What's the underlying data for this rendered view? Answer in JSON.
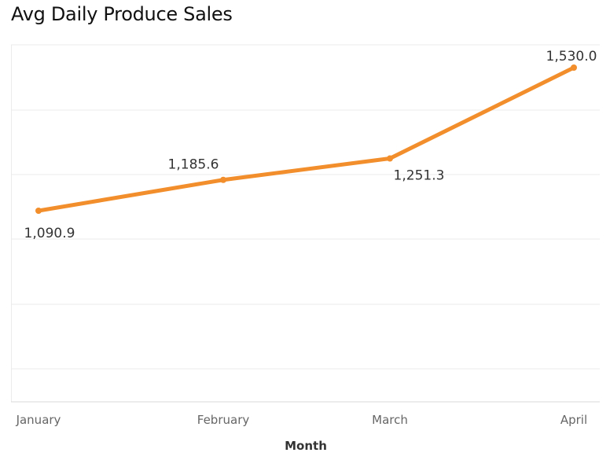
{
  "chart_data": {
    "type": "line",
    "title": "Avg Daily Produce Sales",
    "xlabel": "Month",
    "ylabel": "",
    "categories": [
      "January",
      "February",
      "March",
      "April"
    ],
    "series": [
      {
        "values": [
          1090.9,
          1185.6,
          1251.3,
          1530.0
        ],
        "data_labels": [
          "1,090.9",
          "1,185.6",
          "1,251.3",
          "1,530.0"
        ],
        "color": "#f28e2b"
      }
    ],
    "ylim": [
      1180,
      1330
    ],
    "grid": true,
    "gridline_color": "#ebebeb",
    "legend": "none"
  }
}
